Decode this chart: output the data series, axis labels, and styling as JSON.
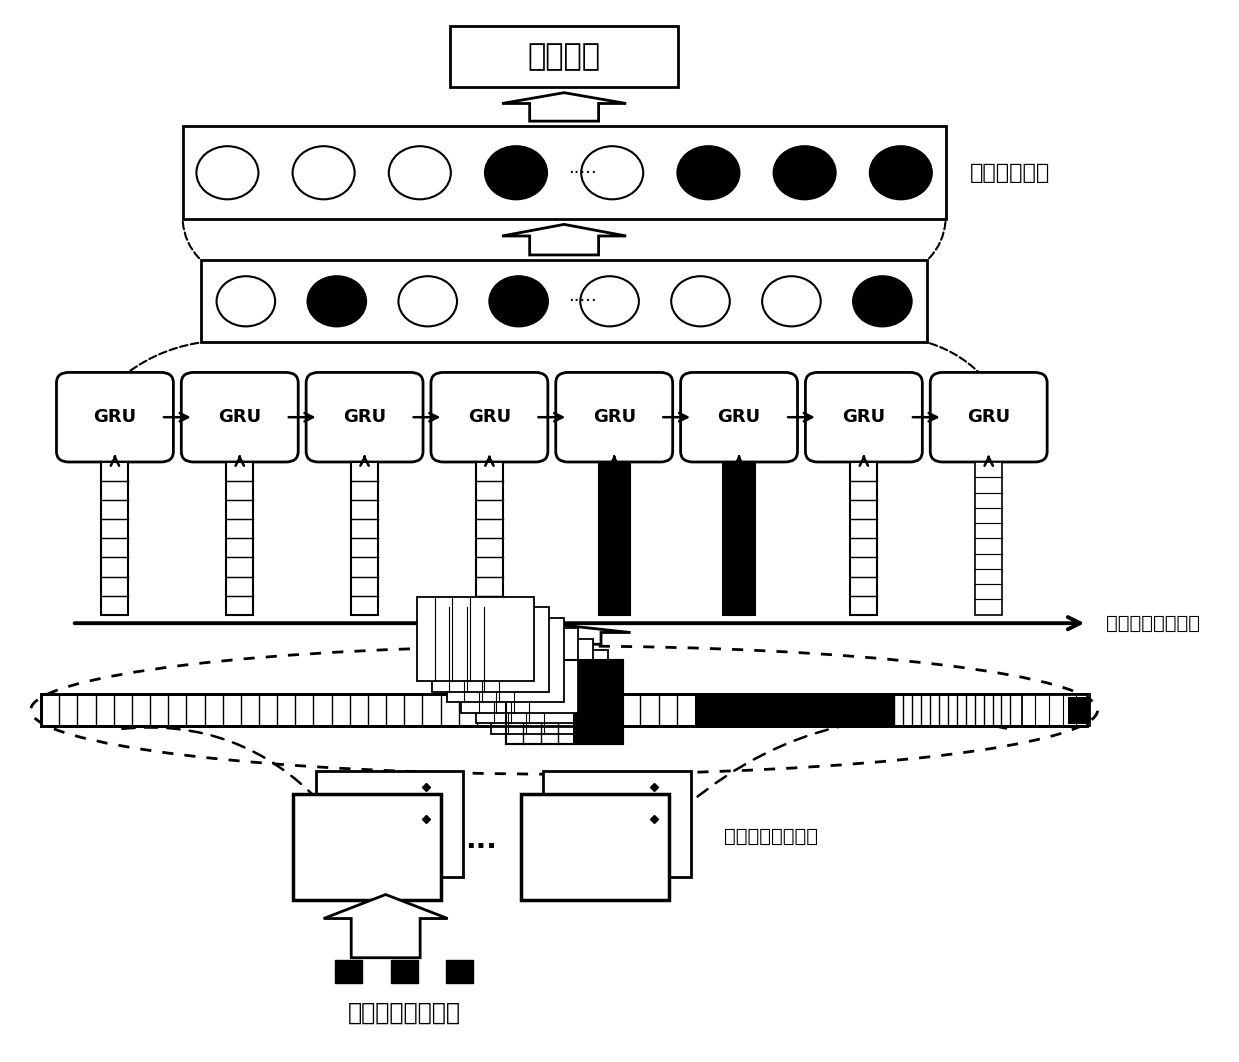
{
  "fig_width": 12.39,
  "fig_height": 10.62,
  "bg_color": "#ffffff",
  "title_box_text": "分类结果",
  "label_smooth": "平滑分布模块",
  "label_temporal": "时序特征记忆模块",
  "label_local": "局部特征提取模块",
  "label_data": "压缩采样后的数据",
  "gru_label": "GRU",
  "n_gru": 8,
  "smooth_circles": [
    "white",
    "white",
    "white",
    "black",
    "white",
    "black",
    "black",
    "black"
  ],
  "gru_out_circles": [
    "white",
    "black",
    "white",
    "black",
    "white",
    "white",
    "white",
    "black"
  ],
  "bar_styles": [
    "stripe",
    "stripe",
    "stripe",
    "stripe",
    "black",
    "black",
    "stripe",
    "stripe_small"
  ]
}
